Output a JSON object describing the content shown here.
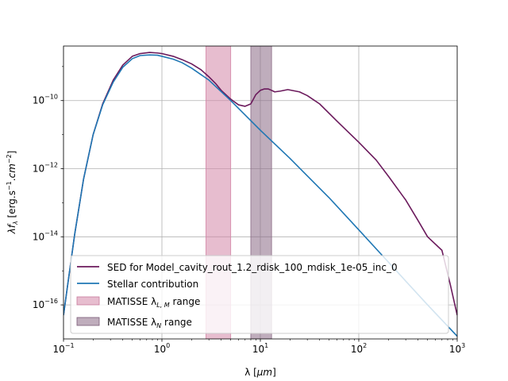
{
  "chart_data": {
    "type": "line",
    "xscale": "log",
    "yscale": "log",
    "xlim": [
      0.1,
      1000
    ],
    "ylim": [
      1e-17,
      4e-09
    ],
    "grid": true,
    "legend_position": "lower-left",
    "xlabel": {
      "main": "λ [",
      "unit": "μm",
      "end": "]"
    },
    "ylabel": {
      "l": "λf",
      "sub": "λ",
      "mid": " [erg.s",
      "sup1": "−1",
      "dot": ".",
      "cm": "cm",
      "sup2": "−2",
      "end": "]"
    },
    "x_ticks": [
      {
        "value": 0.1,
        "base": "10",
        "exp": "−1"
      },
      {
        "value": 1,
        "base": "10",
        "exp": "0"
      },
      {
        "value": 10,
        "base": "10",
        "exp": "1"
      },
      {
        "value": 100,
        "base": "10",
        "exp": "2"
      },
      {
        "value": 1000,
        "base": "10",
        "exp": "3"
      }
    ],
    "y_ticks": [
      {
        "value": 1e-16,
        "base": "10",
        "exp": "−16"
      },
      {
        "value": 1e-14,
        "base": "10",
        "exp": "−14"
      },
      {
        "value": 1e-12,
        "base": "10",
        "exp": "−12"
      },
      {
        "value": 1e-10,
        "base": "10",
        "exp": "−10"
      }
    ],
    "bands": [
      {
        "name": "MATISSE λL,M range",
        "label_pre": "MATISSE λ",
        "label_sub": "L, M",
        "label_post": " range",
        "x0": 2.8,
        "x1": 5.0,
        "color": "#d486a8",
        "opacity": 0.55
      },
      {
        "name": "MATISSE λN range",
        "label_pre": "MATISSE λ",
        "label_sub": "N",
        "label_post": " range",
        "x0": 8.0,
        "x1": 13.0,
        "color": "#8a6a85",
        "opacity": 0.55
      }
    ],
    "series": [
      {
        "name": "SED for Model_cavity_rout_1.2_rdisk_100_mdisk_1e-05_inc_0",
        "color": "#6b1a5c",
        "points": [
          [
            0.1,
            5e-17
          ],
          [
            0.13,
            1.2e-14
          ],
          [
            0.16,
            5e-13
          ],
          [
            0.2,
            1e-11
          ],
          [
            0.25,
            8e-11
          ],
          [
            0.32,
            4e-10
          ],
          [
            0.4,
            1.1e-09
          ],
          [
            0.5,
            2e-09
          ],
          [
            0.6,
            2.4e-09
          ],
          [
            0.75,
            2.6e-09
          ],
          [
            0.9,
            2.5e-09
          ],
          [
            1.0,
            2.4e-09
          ],
          [
            1.3,
            2e-09
          ],
          [
            1.6,
            1.6e-09
          ],
          [
            2.0,
            1.2e-09
          ],
          [
            2.5,
            8e-10
          ],
          [
            3.0,
            5e-10
          ],
          [
            3.5,
            3.2e-10
          ],
          [
            4.0,
            2e-10
          ],
          [
            5.0,
            1.1e-10
          ],
          [
            6.0,
            7.5e-11
          ],
          [
            7.0,
            6.8e-11
          ],
          [
            8.0,
            8e-11
          ],
          [
            9.0,
            1.5e-10
          ],
          [
            10.0,
            2e-10
          ],
          [
            11.0,
            2.2e-10
          ],
          [
            12.0,
            2.2e-10
          ],
          [
            13.0,
            2e-10
          ],
          [
            14.0,
            1.8e-10
          ],
          [
            16.0,
            1.9e-10
          ],
          [
            19.0,
            2.1e-10
          ],
          [
            25.0,
            1.8e-10
          ],
          [
            30.0,
            1.4e-10
          ],
          [
            40.0,
            8e-11
          ],
          [
            60.0,
            2.5e-11
          ],
          [
            100.0,
            6e-12
          ],
          [
            150.0,
            1.8e-12
          ],
          [
            200.0,
            6e-13
          ],
          [
            300.0,
            1.2e-13
          ],
          [
            400.0,
            3e-14
          ],
          [
            500.0,
            1e-14
          ],
          [
            700.0,
            4e-15
          ],
          [
            850.0,
            4e-16
          ],
          [
            1000.0,
            5e-17
          ]
        ]
      },
      {
        "name": "Stellar contribution",
        "color": "#1f77b4",
        "points": [
          [
            0.1,
            5e-17
          ],
          [
            0.13,
            1.2e-14
          ],
          [
            0.16,
            5e-13
          ],
          [
            0.2,
            1e-11
          ],
          [
            0.25,
            7.5e-11
          ],
          [
            0.32,
            3.5e-10
          ],
          [
            0.4,
            9.5e-10
          ],
          [
            0.5,
            1.7e-09
          ],
          [
            0.6,
            2.1e-09
          ],
          [
            0.75,
            2.2e-09
          ],
          [
            0.9,
            2.15e-09
          ],
          [
            1.0,
            2e-09
          ],
          [
            1.3,
            1.65e-09
          ],
          [
            1.6,
            1.3e-09
          ],
          [
            2.0,
            9e-10
          ],
          [
            3.0,
            4e-10
          ],
          [
            5.0,
            1e-10
          ],
          [
            10.0,
            1.35e-11
          ],
          [
            20.0,
            2e-12
          ],
          [
            50.0,
            1.4e-13
          ],
          [
            100.0,
            1.6e-14
          ],
          [
            200.0,
            1.8e-15
          ],
          [
            500.0,
            1e-16
          ],
          [
            1000.0,
            1.2e-17
          ]
        ]
      }
    ]
  }
}
